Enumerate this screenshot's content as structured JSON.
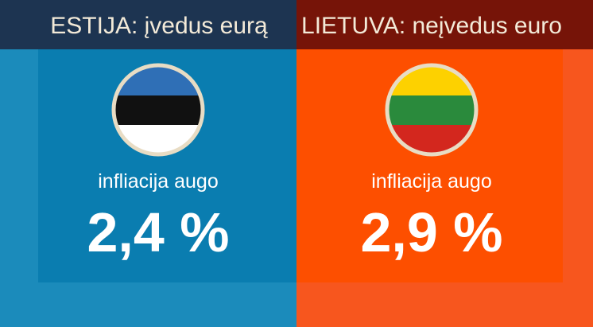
{
  "panels": [
    {
      "title": "ESTIJA: įvedus eurą",
      "subtitle": "infliacija augo",
      "value": "2,4 %"
    },
    {
      "title": "LIETUVA: neįvedus euro",
      "subtitle": "infliacija augo",
      "value": "2,9 %"
    }
  ]
}
